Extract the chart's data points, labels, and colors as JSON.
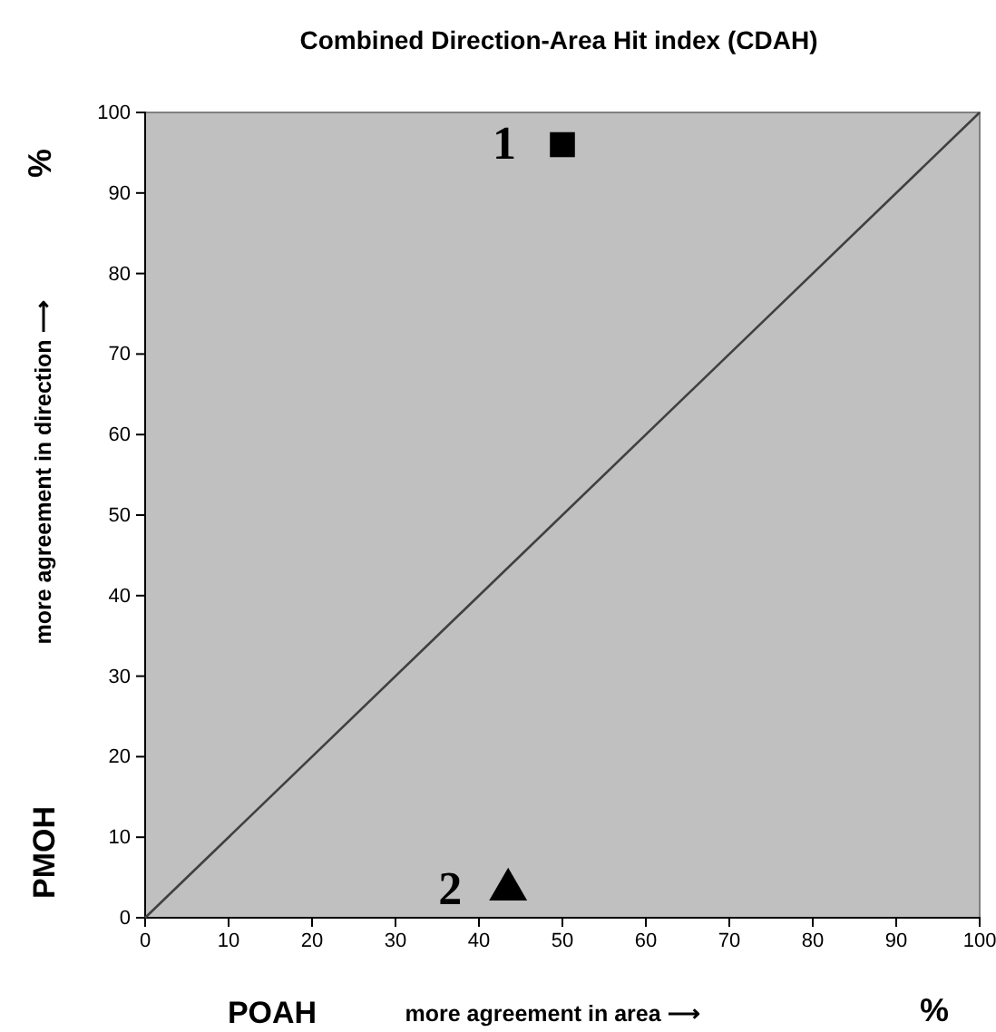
{
  "chart_data": {
    "type": "scatter",
    "title": "Combined Direction-Area Hit index (CDAH)",
    "xlabel": "POAH",
    "ylabel": "PMOH",
    "xlim": [
      0,
      100
    ],
    "ylim": [
      0,
      100
    ],
    "xticks": [
      0,
      10,
      20,
      30,
      40,
      50,
      60,
      70,
      80,
      90,
      100
    ],
    "yticks": [
      0,
      10,
      20,
      30,
      40,
      50,
      60,
      70,
      80,
      90,
      100
    ],
    "grid": false,
    "series": [
      {
        "type": "line",
        "color": "#404040",
        "x": [
          0,
          100
        ],
        "values": [
          0,
          100
        ],
        "marker": "none"
      },
      {
        "color": "#000000",
        "x": [
          50
        ],
        "values": [
          96
        ],
        "marker": "square"
      },
      {
        "color": "#000000",
        "x": [
          43.5
        ],
        "values": [
          3.5
        ],
        "marker": "triangle"
      }
    ],
    "annotations": [
      "more agreement in area ⟶",
      "%",
      "more agreement in direction ⟶",
      "%",
      "1",
      "2"
    ]
  }
}
